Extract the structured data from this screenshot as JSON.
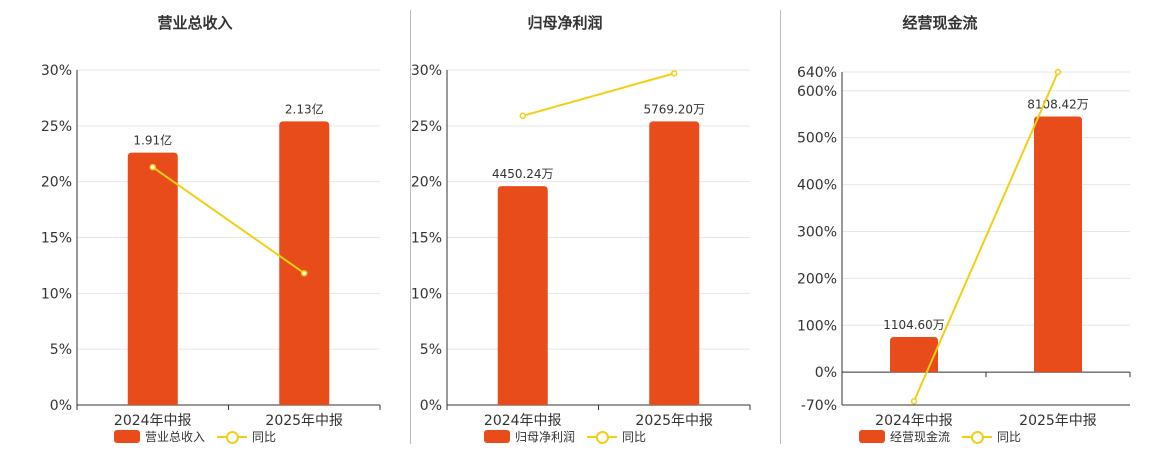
{
  "colors": {
    "bar": "#E84C1A",
    "line": "#F2CF15",
    "grid": "#e6e6e6",
    "axis": "#333333"
  },
  "chart_data": [
    {
      "type": "bar",
      "title": "营业总收入",
      "categories": [
        "2024年中报",
        "2025年中报"
      ],
      "series": [
        {
          "name": "营业总收入",
          "kind": "bar",
          "values": [
            22.6,
            25.4
          ],
          "labels": [
            "1.91亿",
            "2.13亿"
          ]
        },
        {
          "name": "同比",
          "kind": "line",
          "values": [
            21.3,
            11.8
          ]
        }
      ],
      "ylim": [
        0,
        30
      ],
      "yticks": [
        "0%",
        "5%",
        "10%",
        "15%",
        "20%",
        "25%",
        "30%"
      ],
      "ytick_values": [
        0,
        5,
        10,
        15,
        20,
        25,
        30
      ],
      "grid": true,
      "legend_position": "bottom"
    },
    {
      "type": "bar",
      "title": "归母净利润",
      "categories": [
        "2024年中报",
        "2025年中报"
      ],
      "series": [
        {
          "name": "归母净利润",
          "kind": "bar",
          "values": [
            19.6,
            25.4
          ],
          "labels": [
            "4450.24万",
            "5769.20万"
          ]
        },
        {
          "name": "同比",
          "kind": "line",
          "values": [
            25.9,
            29.7
          ]
        }
      ],
      "ylim": [
        0,
        30
      ],
      "yticks": [
        "0%",
        "5%",
        "10%",
        "15%",
        "20%",
        "25%",
        "30%"
      ],
      "ytick_values": [
        0,
        5,
        10,
        15,
        20,
        25,
        30
      ],
      "grid": true,
      "legend_position": "bottom"
    },
    {
      "type": "bar",
      "title": "经营现金流",
      "categories": [
        "2024年中报",
        "2025年中报"
      ],
      "series": [
        {
          "name": "经营现金流",
          "kind": "bar",
          "values": [
            75,
            545
          ],
          "labels": [
            "1104.60万",
            "8108.42万"
          ]
        },
        {
          "name": "同比",
          "kind": "line",
          "values": [
            -62,
            640
          ]
        }
      ],
      "ylim": [
        -70,
        640
      ],
      "yticks": [
        "-70%",
        "0%",
        "100%",
        "200%",
        "300%",
        "400%",
        "500%",
        "600%",
        "640%"
      ],
      "ytick_values": [
        -70,
        0,
        100,
        200,
        300,
        400,
        500,
        600,
        640
      ],
      "grid": true,
      "legend_position": "bottom"
    }
  ]
}
